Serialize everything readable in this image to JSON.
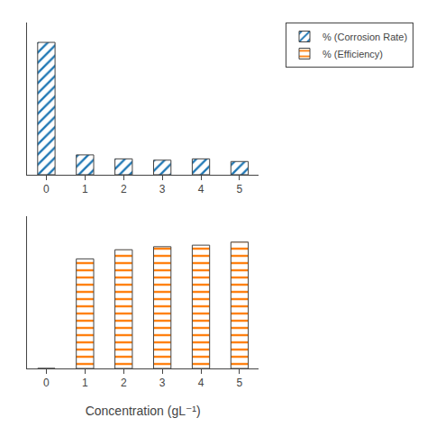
{
  "chart_data": [
    {
      "type": "bar",
      "x": [
        0,
        1,
        2,
        3,
        4,
        5
      ],
      "xlim": [
        -0.5,
        5.5
      ],
      "xticks": [
        0,
        1,
        2,
        3,
        4,
        5
      ],
      "ylim": [
        0,
        115
      ],
      "series": [
        {
          "name": "% (Corrosion Rate)",
          "values": [
            100,
            15,
            12,
            11,
            12,
            10
          ]
        }
      ],
      "tick_labels": "x",
      "grid": false,
      "legend": "upper right"
    },
    {
      "type": "bar",
      "x": [
        0,
        1,
        2,
        3,
        4,
        5
      ],
      "xlabel": "Concentration (gL⁻¹)",
      "xlim": [
        -0.5,
        5.5
      ],
      "xticks": [
        0,
        1,
        2,
        3,
        4,
        5
      ],
      "ylim": [
        0,
        100
      ],
      "series": [
        {
          "name": "% (Efficiency)",
          "values": [
            0,
            72,
            78,
            80,
            81,
            83
          ]
        }
      ],
      "tick_labels": "x",
      "grid": false,
      "legend": "upper right"
    }
  ]
}
